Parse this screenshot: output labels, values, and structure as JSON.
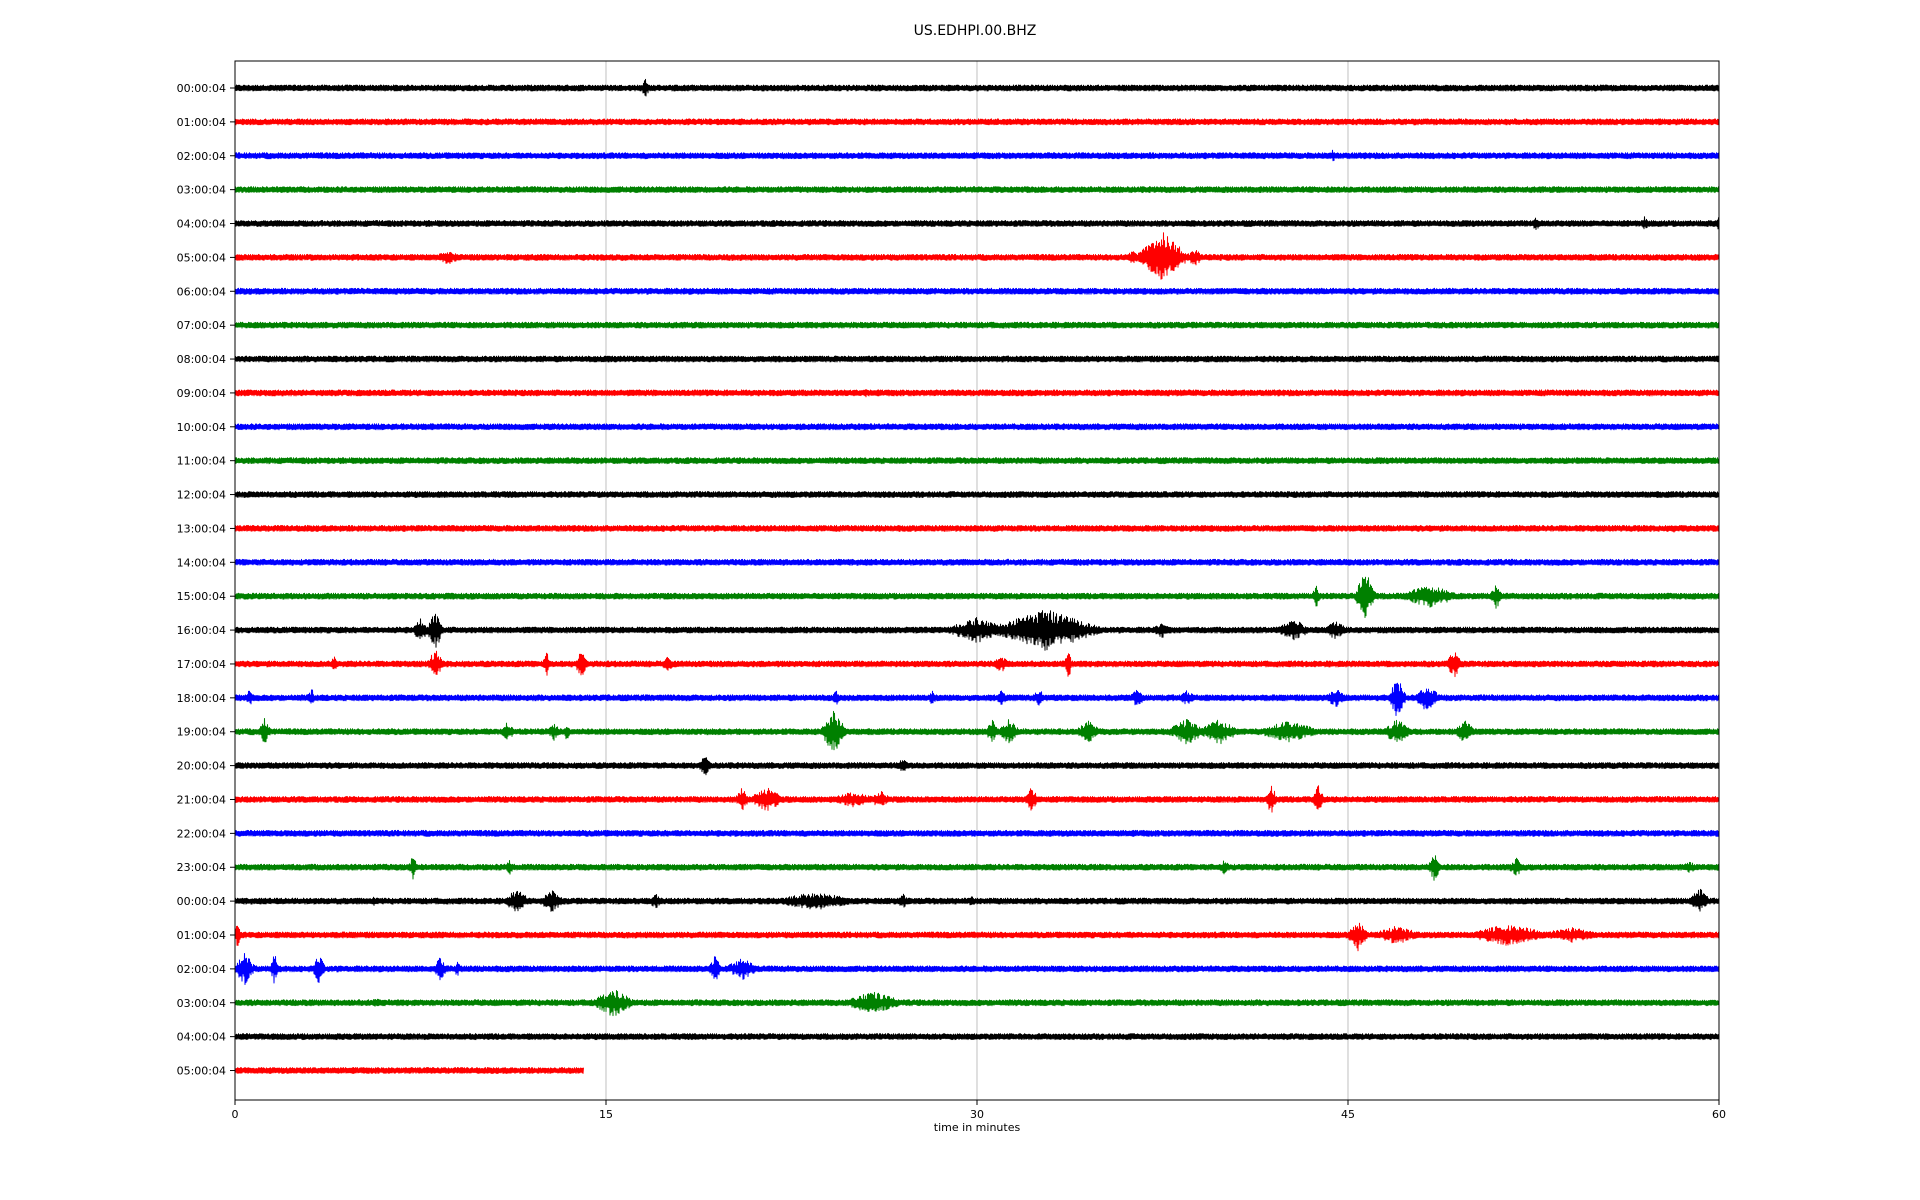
{
  "chart_data": {
    "type": "line",
    "title": "US.EDHPI.00.BHZ",
    "xlabel": "time in minutes",
    "ylabel": "",
    "xlim": [
      0,
      60
    ],
    "x_ticks": [
      0,
      15,
      30,
      45,
      60
    ],
    "grid": "vertical lines at x ticks",
    "legend": "none",
    "trace_colors": [
      "#000000",
      "#ff0000",
      "#0000ff",
      "#008000"
    ],
    "rows": [
      {
        "label": "00:00:04",
        "color": "#000000",
        "end_minute": 60,
        "events": [
          {
            "t": 16.6,
            "amp": 0.7,
            "dur": 0.2
          }
        ]
      },
      {
        "label": "01:00:04",
        "color": "#ff0000",
        "end_minute": 60,
        "events": []
      },
      {
        "label": "02:00:04",
        "color": "#0000ff",
        "end_minute": 60,
        "events": [
          {
            "t": 44.4,
            "amp": 0.4,
            "dur": 0.2
          }
        ]
      },
      {
        "label": "03:00:04",
        "color": "#008000",
        "end_minute": 60,
        "events": []
      },
      {
        "label": "04:00:04",
        "color": "#000000",
        "end_minute": 60,
        "events": [
          {
            "t": 52.6,
            "amp": 0.5,
            "dur": 0.2
          },
          {
            "t": 57.0,
            "amp": 0.5,
            "dur": 0.2
          },
          {
            "t": 60.0,
            "amp": 0.5,
            "dur": 0.1
          }
        ]
      },
      {
        "label": "05:00:04",
        "color": "#ff0000",
        "end_minute": 60,
        "events": [
          {
            "t": 8.6,
            "amp": 0.5,
            "dur": 0.6
          },
          {
            "t": 36.3,
            "amp": 0.4,
            "dur": 0.4
          },
          {
            "t": 37.5,
            "amp": 1.6,
            "dur": 1.2
          },
          {
            "t": 38.8,
            "amp": 0.6,
            "dur": 0.4
          }
        ]
      },
      {
        "label": "06:00:04",
        "color": "#0000ff",
        "end_minute": 60,
        "events": []
      },
      {
        "label": "07:00:04",
        "color": "#008000",
        "end_minute": 60,
        "events": []
      },
      {
        "label": "08:00:04",
        "color": "#000000",
        "end_minute": 60,
        "events": []
      },
      {
        "label": "09:00:04",
        "color": "#ff0000",
        "end_minute": 60,
        "events": [
          {
            "t": 25.5,
            "amp": 0.3,
            "dur": 0.1
          }
        ]
      },
      {
        "label": "10:00:04",
        "color": "#0000ff",
        "end_minute": 60,
        "events": []
      },
      {
        "label": "11:00:04",
        "color": "#008000",
        "end_minute": 60,
        "events": []
      },
      {
        "label": "12:00:04",
        "color": "#000000",
        "end_minute": 60,
        "events": []
      },
      {
        "label": "13:00:04",
        "color": "#ff0000",
        "end_minute": 60,
        "events": [
          {
            "t": 58.2,
            "amp": 0.3,
            "dur": 0.1
          }
        ]
      },
      {
        "label": "14:00:04",
        "color": "#0000ff",
        "end_minute": 60,
        "events": []
      },
      {
        "label": "15:00:04",
        "color": "#008000",
        "end_minute": 60,
        "events": [
          {
            "t": 43.7,
            "amp": 0.8,
            "dur": 0.2
          },
          {
            "t": 45.7,
            "amp": 1.6,
            "dur": 0.5
          },
          {
            "t": 48.3,
            "amp": 0.7,
            "dur": 1.5
          },
          {
            "t": 51.0,
            "amp": 0.8,
            "dur": 0.3
          }
        ]
      },
      {
        "label": "16:00:04",
        "color": "#000000",
        "end_minute": 60,
        "events": [
          {
            "t": 7.5,
            "amp": 0.8,
            "dur": 0.4
          },
          {
            "t": 8.1,
            "amp": 1.2,
            "dur": 0.4
          },
          {
            "t": 30.0,
            "amp": 0.8,
            "dur": 1.5
          },
          {
            "t": 32.8,
            "amp": 1.3,
            "dur": 2.6
          },
          {
            "t": 37.5,
            "amp": 0.5,
            "dur": 0.5
          },
          {
            "t": 42.8,
            "amp": 0.7,
            "dur": 0.8
          },
          {
            "t": 44.5,
            "amp": 0.6,
            "dur": 0.6
          }
        ]
      },
      {
        "label": "17:00:04",
        "color": "#ff0000",
        "end_minute": 60,
        "events": [
          {
            "t": 4.0,
            "amp": 0.5,
            "dur": 0.2
          },
          {
            "t": 8.1,
            "amp": 0.9,
            "dur": 0.4
          },
          {
            "t": 12.6,
            "amp": 0.8,
            "dur": 0.2
          },
          {
            "t": 14.0,
            "amp": 0.9,
            "dur": 0.3
          },
          {
            "t": 17.5,
            "amp": 0.5,
            "dur": 0.3
          },
          {
            "t": 33.7,
            "amp": 0.9,
            "dur": 0.2
          },
          {
            "t": 31.0,
            "amp": 0.5,
            "dur": 0.5
          },
          {
            "t": 49.3,
            "amp": 0.9,
            "dur": 0.4
          }
        ]
      },
      {
        "label": "18:00:04",
        "color": "#0000ff",
        "end_minute": 60,
        "events": [
          {
            "t": 0.6,
            "amp": 0.6,
            "dur": 0.2
          },
          {
            "t": 3.1,
            "amp": 0.6,
            "dur": 0.2
          },
          {
            "t": 24.3,
            "amp": 0.5,
            "dur": 0.2
          },
          {
            "t": 28.2,
            "amp": 0.5,
            "dur": 0.2
          },
          {
            "t": 31.0,
            "amp": 0.5,
            "dur": 0.3
          },
          {
            "t": 32.5,
            "amp": 0.6,
            "dur": 0.3
          },
          {
            "t": 36.5,
            "amp": 0.6,
            "dur": 0.4
          },
          {
            "t": 38.5,
            "amp": 0.5,
            "dur": 0.4
          },
          {
            "t": 44.5,
            "amp": 0.6,
            "dur": 0.5
          },
          {
            "t": 47.0,
            "amp": 1.3,
            "dur": 0.4
          },
          {
            "t": 48.2,
            "amp": 0.9,
            "dur": 0.6
          }
        ]
      },
      {
        "label": "19:00:04",
        "color": "#008000",
        "end_minute": 60,
        "events": [
          {
            "t": 1.2,
            "amp": 0.9,
            "dur": 0.3
          },
          {
            "t": 11.0,
            "amp": 0.6,
            "dur": 0.4
          },
          {
            "t": 12.9,
            "amp": 0.6,
            "dur": 0.3
          },
          {
            "t": 13.4,
            "amp": 0.6,
            "dur": 0.2
          },
          {
            "t": 24.2,
            "amp": 1.4,
            "dur": 0.6
          },
          {
            "t": 30.6,
            "amp": 0.8,
            "dur": 0.3
          },
          {
            "t": 31.3,
            "amp": 0.8,
            "dur": 0.5
          },
          {
            "t": 34.5,
            "amp": 0.7,
            "dur": 0.6
          },
          {
            "t": 38.5,
            "amp": 0.8,
            "dur": 1.0
          },
          {
            "t": 39.8,
            "amp": 0.8,
            "dur": 1.0
          },
          {
            "t": 42.6,
            "amp": 0.7,
            "dur": 1.5
          },
          {
            "t": 47.0,
            "amp": 0.8,
            "dur": 0.7
          },
          {
            "t": 49.7,
            "amp": 0.8,
            "dur": 0.5
          }
        ]
      },
      {
        "label": "20:00:04",
        "color": "#000000",
        "end_minute": 60,
        "events": [
          {
            "t": 19.0,
            "amp": 0.7,
            "dur": 0.3
          },
          {
            "t": 27.0,
            "amp": 0.5,
            "dur": 0.3
          }
        ]
      },
      {
        "label": "21:00:04",
        "color": "#ff0000",
        "end_minute": 60,
        "events": [
          {
            "t": 20.5,
            "amp": 0.9,
            "dur": 0.3
          },
          {
            "t": 21.5,
            "amp": 0.8,
            "dur": 0.8
          },
          {
            "t": 25.0,
            "amp": 0.5,
            "dur": 1.2
          },
          {
            "t": 26.1,
            "amp": 0.6,
            "dur": 0.5
          },
          {
            "t": 32.2,
            "amp": 0.9,
            "dur": 0.3
          },
          {
            "t": 41.9,
            "amp": 0.9,
            "dur": 0.3
          },
          {
            "t": 43.8,
            "amp": 0.9,
            "dur": 0.3
          }
        ]
      },
      {
        "label": "22:00:04",
        "color": "#0000ff",
        "end_minute": 60,
        "events": []
      },
      {
        "label": "23:00:04",
        "color": "#008000",
        "end_minute": 60,
        "events": [
          {
            "t": 7.2,
            "amp": 0.8,
            "dur": 0.2
          },
          {
            "t": 11.1,
            "amp": 0.6,
            "dur": 0.2
          },
          {
            "t": 40.0,
            "amp": 0.5,
            "dur": 0.3
          },
          {
            "t": 48.5,
            "amp": 0.9,
            "dur": 0.3
          },
          {
            "t": 51.8,
            "amp": 0.6,
            "dur": 0.4
          },
          {
            "t": 58.8,
            "amp": 0.4,
            "dur": 0.4
          }
        ]
      },
      {
        "label": "00:00:04",
        "color": "#000000",
        "end_minute": 60,
        "events": [
          {
            "t": 5.6,
            "amp": 0.3,
            "dur": 0.2
          },
          {
            "t": 11.4,
            "amp": 0.8,
            "dur": 0.6
          },
          {
            "t": 12.8,
            "amp": 0.7,
            "dur": 0.6
          },
          {
            "t": 17.0,
            "amp": 0.5,
            "dur": 0.3
          },
          {
            "t": 23.5,
            "amp": 0.6,
            "dur": 2.0
          },
          {
            "t": 27.0,
            "amp": 0.5,
            "dur": 0.3
          },
          {
            "t": 29.8,
            "amp": 0.4,
            "dur": 0.2
          },
          {
            "t": 59.2,
            "amp": 0.9,
            "dur": 0.5
          }
        ]
      },
      {
        "label": "01:00:04",
        "color": "#ff0000",
        "end_minute": 60,
        "events": [
          {
            "t": 0.1,
            "amp": 0.9,
            "dur": 0.1
          },
          {
            "t": 45.4,
            "amp": 1.0,
            "dur": 0.5
          },
          {
            "t": 47.0,
            "amp": 0.6,
            "dur": 1.2
          },
          {
            "t": 51.5,
            "amp": 0.7,
            "dur": 2.0
          },
          {
            "t": 54.0,
            "amp": 0.5,
            "dur": 1.5
          }
        ]
      },
      {
        "label": "02:00:04",
        "color": "#0000ff",
        "end_minute": 60,
        "events": [
          {
            "t": 0.4,
            "amp": 1.0,
            "dur": 0.5
          },
          {
            "t": 1.6,
            "amp": 1.0,
            "dur": 0.2
          },
          {
            "t": 3.4,
            "amp": 1.0,
            "dur": 0.3
          },
          {
            "t": 8.3,
            "amp": 0.8,
            "dur": 0.3
          },
          {
            "t": 9.0,
            "amp": 0.5,
            "dur": 0.2
          },
          {
            "t": 19.4,
            "amp": 0.9,
            "dur": 0.3
          },
          {
            "t": 20.5,
            "amp": 0.7,
            "dur": 0.8
          }
        ]
      },
      {
        "label": "03:00:04",
        "color": "#008000",
        "end_minute": 60,
        "events": [
          {
            "t": 5.7,
            "amp": 0.3,
            "dur": 0.4
          },
          {
            "t": 15.3,
            "amp": 0.9,
            "dur": 1.0
          },
          {
            "t": 25.8,
            "amp": 0.7,
            "dur": 1.5
          }
        ]
      },
      {
        "label": "04:00:04",
        "color": "#000000",
        "end_minute": 60,
        "events": []
      },
      {
        "label": "05:00:04",
        "color": "#ff0000",
        "end_minute": 14.1,
        "events": []
      }
    ]
  }
}
